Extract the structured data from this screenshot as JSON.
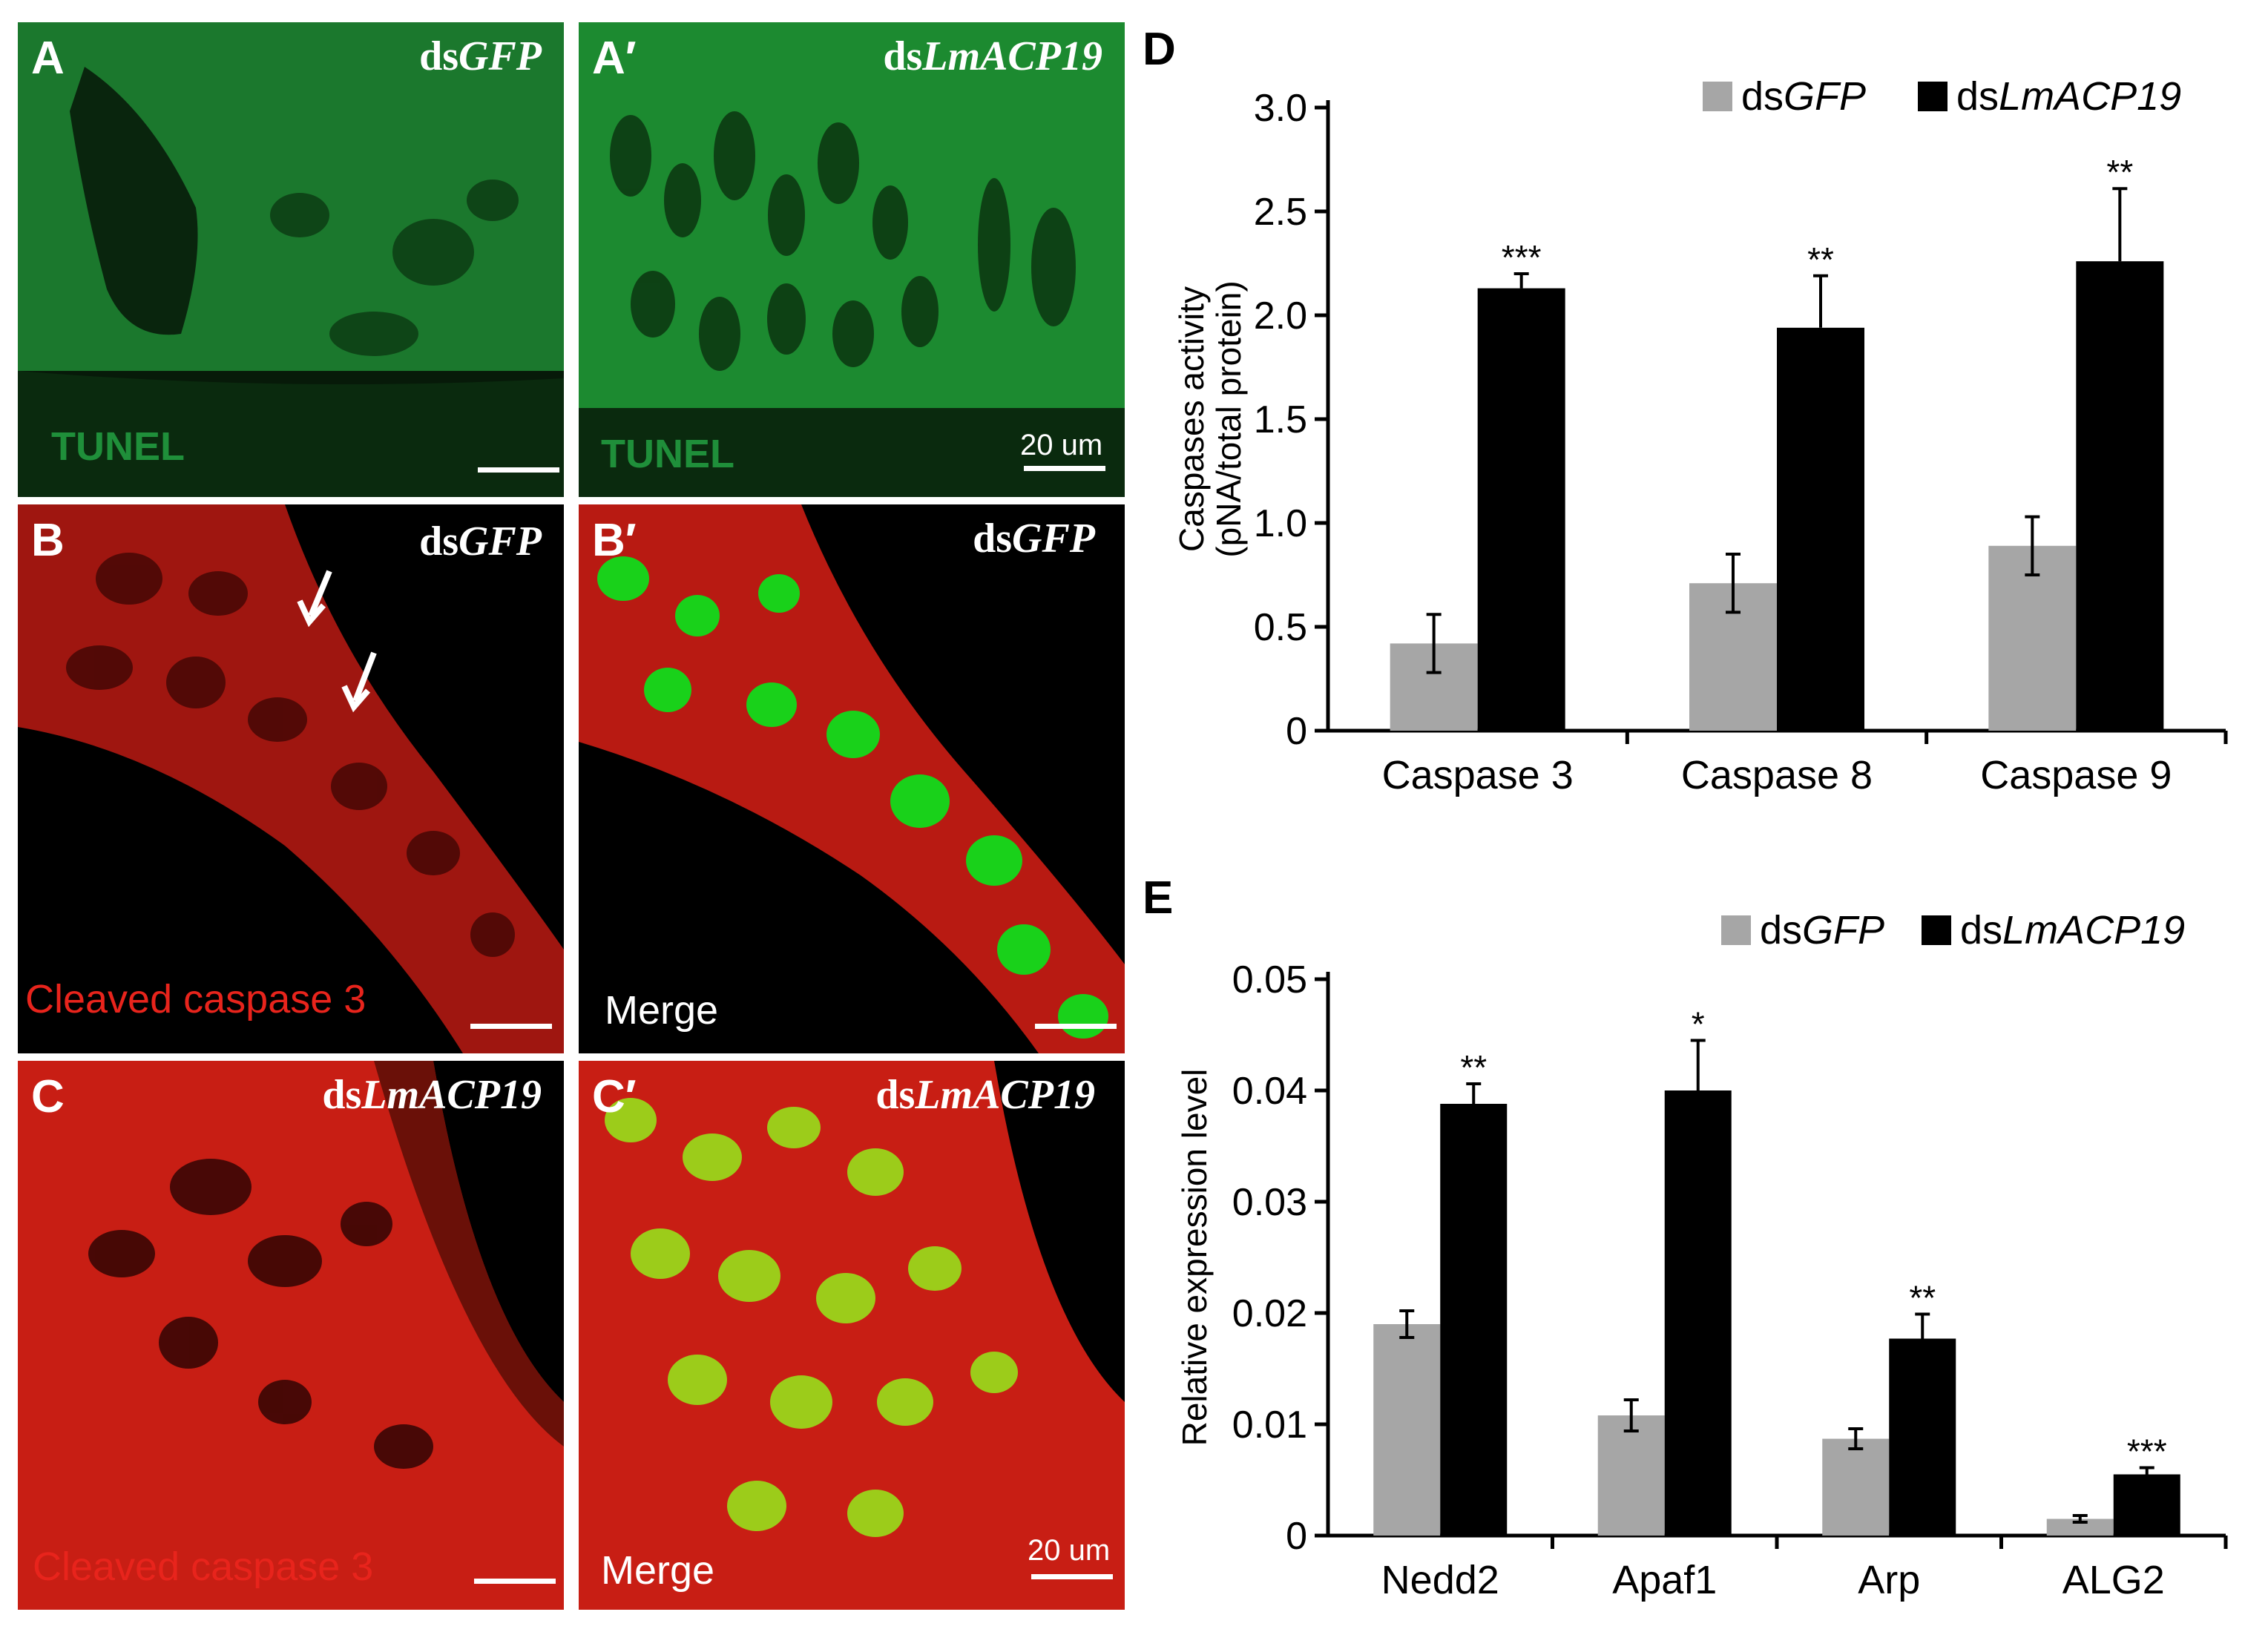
{
  "panels": {
    "A": {
      "letter": "A",
      "condition_prefix": "ds",
      "condition_gene": "GFP",
      "stain": "TUNEL",
      "scale_text": ""
    },
    "A2": {
      "letter": "A′",
      "condition_prefix": "ds",
      "condition_gene": "LmACP19",
      "stain": "TUNEL",
      "scale_text": "20 um"
    },
    "B": {
      "letter": "B",
      "condition_prefix": "ds",
      "condition_gene": "GFP",
      "stain": "Cleaved caspase 3",
      "scale_text": ""
    },
    "B2": {
      "letter": "B′",
      "condition_prefix": "ds",
      "condition_gene": "GFP",
      "stain": "Merge",
      "scale_text": ""
    },
    "C": {
      "letter": "C",
      "condition_prefix": "ds",
      "condition_gene": "LmACP19",
      "stain": "Cleaved caspase 3",
      "scale_text": ""
    },
    "C2": {
      "letter": "C′",
      "condition_prefix": "ds",
      "condition_gene": "LmACP19",
      "stain": "Merge",
      "scale_text": "20 um"
    }
  },
  "colors": {
    "tunel_green": "#1f8f3a",
    "caspase_red": "#e8241c",
    "merge_white": "#ffffff",
    "bar_gfp": "#a6a6a6",
    "bar_acp": "#000000"
  },
  "chart_data": [
    {
      "panel_label": "D",
      "type": "bar",
      "ylabel_line1": "Caspases activity",
      "ylabel_line2": "(pNA/total  protein)",
      "xlabel": "",
      "ylim": [
        0,
        3.0
      ],
      "yticks": [
        "0",
        "0.5",
        "1.0",
        "1.5",
        "2.0",
        "2.5",
        "3.0"
      ],
      "ytick_values": [
        0,
        0.5,
        1.0,
        1.5,
        2.0,
        2.5,
        3.0
      ],
      "categories": [
        "Caspase 3",
        "Caspase 8",
        "Caspase 9"
      ],
      "series": [
        {
          "name_prefix": "ds",
          "name_gene": "GFP",
          "values": [
            0.42,
            0.71,
            0.89
          ],
          "errors": [
            0.14,
            0.14,
            0.14
          ]
        },
        {
          "name_prefix": "ds",
          "name_gene": "LmACP19",
          "values": [
            2.13,
            1.94,
            2.26
          ],
          "errors": [
            0.07,
            0.25,
            0.35
          ]
        }
      ],
      "significance": [
        "***",
        "**",
        "**"
      ],
      "legend": "top-right",
      "grid": false
    },
    {
      "panel_label": "E",
      "type": "bar",
      "ylabel_line1": "Relative expression level",
      "ylabel_line2": "",
      "xlabel": "",
      "ylim": [
        0,
        0.05
      ],
      "yticks": [
        "0",
        "0.01",
        "0.02",
        "0.03",
        "0.04",
        "0.05"
      ],
      "ytick_values": [
        0,
        0.01,
        0.02,
        0.03,
        0.04,
        0.05
      ],
      "categories": [
        "Nedd2",
        "Apaf1",
        "Arp",
        "ALG2"
      ],
      "series": [
        {
          "name_prefix": "ds",
          "name_gene": "GFP",
          "values": [
            0.019,
            0.0108,
            0.0087,
            0.0015
          ],
          "errors": [
            0.0012,
            0.0014,
            0.0009,
            0.0003
          ]
        },
        {
          "name_prefix": "ds",
          "name_gene": "LmACP19",
          "values": [
            0.0388,
            0.04,
            0.0177,
            0.0055
          ],
          "errors": [
            0.0018,
            0.0045,
            0.0022,
            0.0006
          ]
        }
      ],
      "significance": [
        "**",
        "*",
        "**",
        "***"
      ],
      "legend": "top-right",
      "grid": false
    }
  ]
}
